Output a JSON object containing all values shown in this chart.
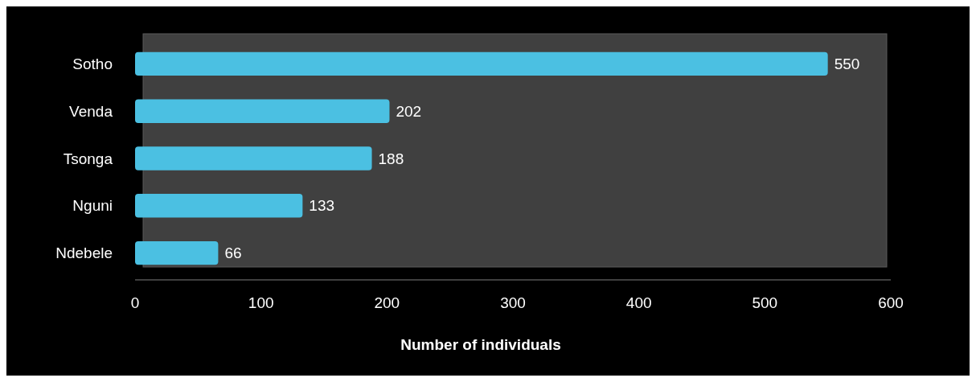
{
  "chart_data": {
    "type": "bar",
    "orientation": "horizontal",
    "xlabel": "Number of individuals",
    "categories": [
      "Sotho",
      "Venda",
      "Tsonga",
      "Nguni",
      "Ndebele"
    ],
    "values": [
      550,
      202,
      188,
      133,
      66
    ],
    "color": "#4bc0e2",
    "xlim": [
      0,
      600
    ],
    "xticks": [
      0,
      100,
      200,
      300,
      400,
      500,
      600
    ],
    "data_labels": true,
    "grid": false
  }
}
